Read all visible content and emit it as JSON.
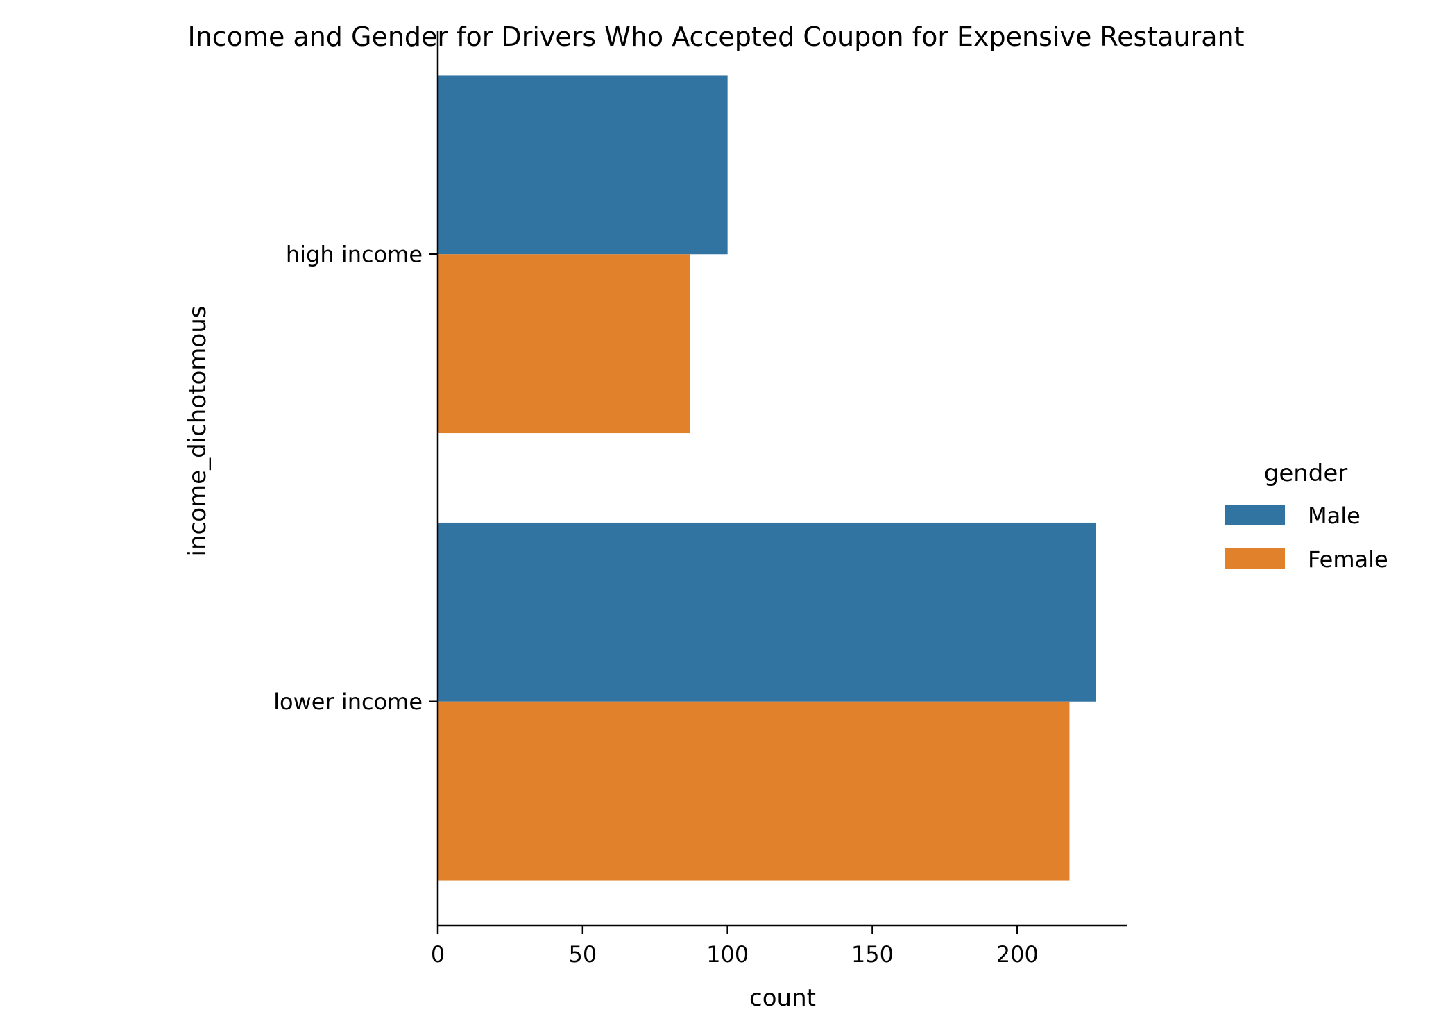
{
  "chart_data": {
    "type": "bar",
    "orientation": "horizontal",
    "title": "Income and Gender for Drivers Who Accepted Coupon for Expensive Restaurant",
    "xlabel": "count",
    "ylabel": "income_dichotomous",
    "categories": [
      "high income",
      "lower income"
    ],
    "series": [
      {
        "name": "Male",
        "color": "#3274a1",
        "values": [
          100,
          227
        ]
      },
      {
        "name": "Female",
        "color": "#e1812c",
        "values": [
          87,
          218
        ]
      }
    ],
    "xlim": [
      0,
      238
    ],
    "xticks": [
      0,
      50,
      100,
      150,
      200
    ],
    "xtick_labels": [
      "0",
      "50",
      "100",
      "150",
      "200"
    ],
    "legend": {
      "title": "gender",
      "position": "right"
    },
    "grid": false
  }
}
